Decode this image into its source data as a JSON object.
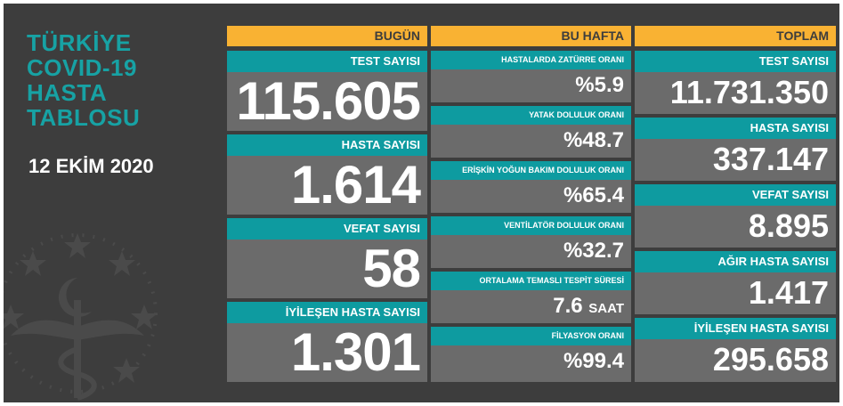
{
  "title_lines": [
    "TÜRKİYE",
    "COVID-19",
    "HASTA",
    "TABLOSU"
  ],
  "date": "12 EKİM 2020",
  "colors": {
    "background": "#3d3d3d",
    "header": "#f9b233",
    "label": "#0e9ba0",
    "card": "#6b6b6b",
    "title": "#17a2a4"
  },
  "columns": {
    "bugun": {
      "header": "BUGÜN",
      "items": [
        {
          "label": "TEST SAYISI",
          "value": "115.605"
        },
        {
          "label": "HASTA SAYISI",
          "value": "1.614"
        },
        {
          "label": "VEFAT SAYISI",
          "value": "58"
        },
        {
          "label": "İYİLEŞEN HASTA SAYISI",
          "value": "1.301"
        }
      ]
    },
    "bu_hafta": {
      "header": "BU HAFTA",
      "items": [
        {
          "label": "HASTALARDA ZATÜRRE ORANI",
          "value": "%5.9",
          "unit": ""
        },
        {
          "label": "YATAK DOLULUK ORANI",
          "value": "%48.7",
          "unit": ""
        },
        {
          "label": "ERİŞKİN YOĞUN BAKIM DOLULUK ORANI",
          "value": "%65.4",
          "unit": ""
        },
        {
          "label": "VENTİLATÖR DOLULUK ORANI",
          "value": "%32.7",
          "unit": ""
        },
        {
          "label": "ORTALAMA TEMASLI TESPİT SÜRESİ",
          "value": "7.6",
          "unit": "SAAT"
        },
        {
          "label": "FİLYASYON ORANI",
          "value": "%99.4",
          "unit": ""
        }
      ]
    },
    "toplam": {
      "header": "TOPLAM",
      "items": [
        {
          "label": "TEST SAYISI",
          "value": "11.731.350"
        },
        {
          "label": "HASTA SAYISI",
          "value": "337.147"
        },
        {
          "label": "VEFAT SAYISI",
          "value": "8.895"
        },
        {
          "label": "AĞIR HASTA SAYISI",
          "value": "1.417"
        },
        {
          "label": "İYİLEŞEN HASTA SAYISI",
          "value": "295.658"
        }
      ]
    }
  }
}
